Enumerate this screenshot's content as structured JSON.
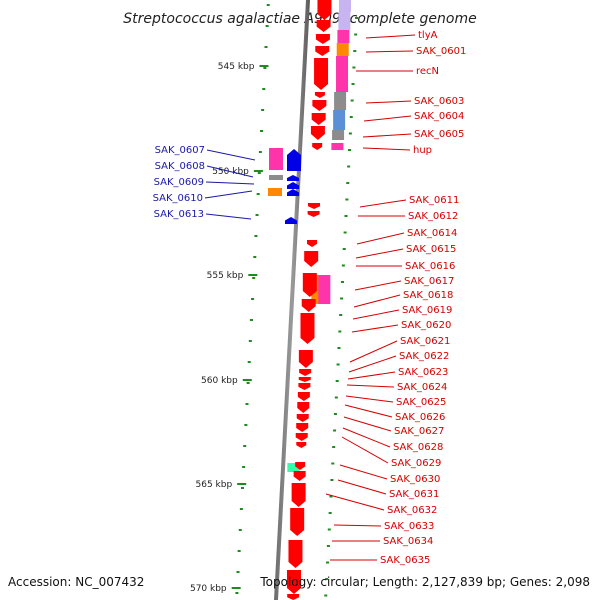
{
  "title": "Streptococcus agalactiae A909, complete genome",
  "footer": {
    "accession": "Accession: NC_007432",
    "topology": "Topology: circular; Length: 2,127,839 bp; Genes: 2,098"
  },
  "scale_labels": [
    "545 kbp",
    "550 kbp",
    "555 kbp",
    "560 kbp",
    "565 kbp",
    "570 kbp"
  ],
  "right_labels": [
    "tlyA",
    "SAK_0601",
    "recN",
    "SAK_0603",
    "SAK_0604",
    "SAK_0605",
    "hup",
    "SAK_0611",
    "SAK_0612",
    "SAK_0614",
    "SAK_0615",
    "SAK_0616",
    "SAK_0617",
    "SAK_0618",
    "SAK_0619",
    "SAK_0620",
    "SAK_0621",
    "SAK_0622",
    "SAK_0623",
    "SAK_0624",
    "SAK_0625",
    "SAK_0626",
    "SAK_0627",
    "SAK_0628",
    "SAK_0629",
    "SAK_0630",
    "SAK_0631",
    "SAK_0632",
    "SAK_0633",
    "SAK_0634",
    "SAK_0635"
  ],
  "left_labels": [
    "SAK_0607",
    "SAK_0608",
    "SAK_0609",
    "SAK_0610",
    "SAK_0613"
  ],
  "colors": {
    "gene_red": "#ff0000",
    "gene_blue": "#0000e6",
    "feature_pink": "#ff33aa",
    "feature_orange": "#ff8800",
    "feature_gray": "#8c8c8c",
    "feature_steel": "#5b8fd6",
    "feature_lavender": "#c8b4f0",
    "feature_teal": "#33ffaa",
    "backbone": "#7a7a7a",
    "tick": "#1f8a1f",
    "label_red": "#d40000",
    "label_blue": "#1a1aa6"
  }
}
